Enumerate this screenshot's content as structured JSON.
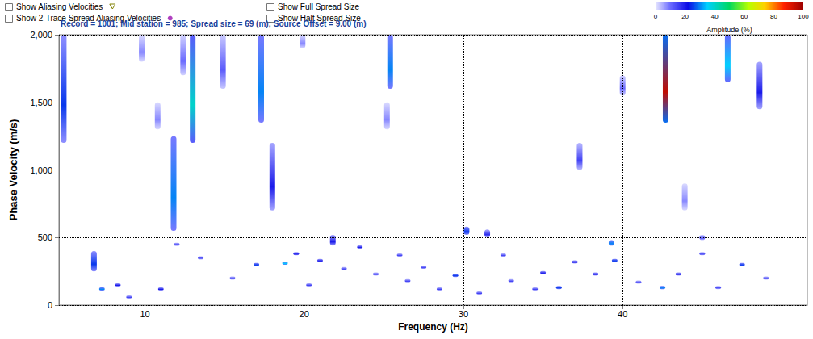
{
  "chart_data": {
    "type": "heatmap",
    "title": "Record = 1001; Mid station = 985; Spread size = 69 (m); Source Offset = 9.00 (m)",
    "annotations": [
      "Show Aliasing Velocities",
      "Show 2-Trace Spread Aliasing Velocities",
      "Show Full Spread Size",
      "Show Half Spread Size"
    ],
    "x_label": "Frequency (Hz)",
    "y_label": "Phase Velocity (m/s)",
    "xlim": [
      4.6,
      51.6
    ],
    "xticks": [
      10,
      20,
      30,
      40
    ],
    "ylim": [
      0,
      2000
    ],
    "yticks": [
      0,
      500,
      {
        "value": 1000,
        "label": "1,000"
      },
      {
        "value": 1500,
        "label": "1,500"
      },
      {
        "value": 2000,
        "label": "2,000"
      }
    ],
    "grid": true,
    "colorbar": {
      "label": "Amplitude (%)",
      "range": [
        0,
        100
      ],
      "ticks": [
        0,
        20,
        40,
        60,
        80,
        100
      ]
    },
    "features": [
      {
        "x": 4.9,
        "y": [
          1200,
          2000
        ],
        "amplitude": 25
      },
      {
        "x": 6.8,
        "y": [
          250,
          400
        ],
        "amplitude": 25
      },
      {
        "x": 9.8,
        "y": [
          1800,
          2000
        ],
        "amplitude": 8
      },
      {
        "x": 10.8,
        "y": [
          1300,
          1500
        ],
        "amplitude": 8
      },
      {
        "x": 11.8,
        "y": [
          550,
          1250
        ],
        "amplitude": 30
      },
      {
        "x": 12.4,
        "y": [
          1700,
          2000
        ],
        "amplitude": 10
      },
      {
        "x": 13.0,
        "y": [
          1200,
          2000
        ],
        "amplitude": 40
      },
      {
        "x": 14.9,
        "y": [
          1600,
          2000
        ],
        "amplitude": 12
      },
      {
        "x": 17.3,
        "y": [
          1350,
          2000
        ],
        "amplitude": 30
      },
      {
        "x": 18.0,
        "y": [
          700,
          1200
        ],
        "amplitude": 20
      },
      {
        "x": 19.9,
        "y": [
          1900,
          2000
        ],
        "amplitude": 8
      },
      {
        "x": 21.8,
        "y": [
          440,
          520
        ],
        "amplitude": 20
      },
      {
        "x": 25.2,
        "y": [
          1300,
          1500
        ],
        "amplitude": 8
      },
      {
        "x": 25.4,
        "y": [
          1600,
          2000
        ],
        "amplitude": 30
      },
      {
        "x": 30.2,
        "y": [
          520,
          580
        ],
        "amplitude": 25
      },
      {
        "x": 31.5,
        "y": [
          500,
          560
        ],
        "amplitude": 18
      },
      {
        "x": 37.3,
        "y": [
          1000,
          1200
        ],
        "amplitude": 15
      },
      {
        "x": 39.3,
        "y": [
          440,
          480
        ],
        "amplitude": 30
      },
      {
        "x": 40.0,
        "y": [
          1550,
          1700
        ],
        "amplitude": 10
      },
      {
        "x": 42.7,
        "y": [
          1350,
          2000
        ],
        "amplitude": 95
      },
      {
        "x": 43.9,
        "y": [
          700,
          900
        ],
        "amplitude": 8
      },
      {
        "x": 45.0,
        "y": [
          480,
          520
        ],
        "amplitude": 12
      },
      {
        "x": 46.6,
        "y": [
          1650,
          2000
        ],
        "amplitude": 35
      },
      {
        "x": 48.6,
        "y": [
          1450,
          1800
        ],
        "amplitude": 20
      },
      {
        "x": 7.3,
        "y": [
          110,
          130
        ],
        "amplitude": 30
      },
      {
        "x": 8.3,
        "y": [
          140,
          160
        ],
        "amplitude": 20
      },
      {
        "x": 9.0,
        "y": [
          50,
          70
        ],
        "amplitude": 15
      },
      {
        "x": 11.0,
        "y": [
          110,
          130
        ],
        "amplitude": 20
      },
      {
        "x": 12.0,
        "y": [
          440,
          460
        ],
        "amplitude": 15
      },
      {
        "x": 13.5,
        "y": [
          340,
          360
        ],
        "amplitude": 15
      },
      {
        "x": 15.5,
        "y": [
          190,
          210
        ],
        "amplitude": 15
      },
      {
        "x": 17.0,
        "y": [
          290,
          310
        ],
        "amplitude": 25
      },
      {
        "x": 18.8,
        "y": [
          300,
          320
        ],
        "amplitude": 35
      },
      {
        "x": 19.5,
        "y": [
          370,
          390
        ],
        "amplitude": 20
      },
      {
        "x": 20.3,
        "y": [
          140,
          160
        ],
        "amplitude": 15
      },
      {
        "x": 21.0,
        "y": [
          320,
          340
        ],
        "amplitude": 20
      },
      {
        "x": 22.5,
        "y": [
          260,
          280
        ],
        "amplitude": 15
      },
      {
        "x": 23.5,
        "y": [
          420,
          440
        ],
        "amplitude": 20
      },
      {
        "x": 24.5,
        "y": [
          220,
          240
        ],
        "amplitude": 15
      },
      {
        "x": 26.0,
        "y": [
          360,
          380
        ],
        "amplitude": 15
      },
      {
        "x": 26.5,
        "y": [
          170,
          190
        ],
        "amplitude": 15
      },
      {
        "x": 27.5,
        "y": [
          270,
          290
        ],
        "amplitude": 15
      },
      {
        "x": 28.5,
        "y": [
          110,
          130
        ],
        "amplitude": 15
      },
      {
        "x": 29.5,
        "y": [
          210,
          230
        ],
        "amplitude": 25
      },
      {
        "x": 31.0,
        "y": [
          80,
          100
        ],
        "amplitude": 15
      },
      {
        "x": 32.5,
        "y": [
          360,
          380
        ],
        "amplitude": 15
      },
      {
        "x": 33.0,
        "y": [
          170,
          190
        ],
        "amplitude": 15
      },
      {
        "x": 34.5,
        "y": [
          110,
          130
        ],
        "amplitude": 15
      },
      {
        "x": 35.0,
        "y": [
          230,
          250
        ],
        "amplitude": 20
      },
      {
        "x": 36.0,
        "y": [
          120,
          140
        ],
        "amplitude": 25
      },
      {
        "x": 37.0,
        "y": [
          310,
          330
        ],
        "amplitude": 20
      },
      {
        "x": 38.3,
        "y": [
          220,
          240
        ],
        "amplitude": 20
      },
      {
        "x": 39.5,
        "y": [
          320,
          340
        ],
        "amplitude": 25
      },
      {
        "x": 41.0,
        "y": [
          160,
          180
        ],
        "amplitude": 15
      },
      {
        "x": 42.5,
        "y": [
          120,
          140
        ],
        "amplitude": 30
      },
      {
        "x": 43.5,
        "y": [
          220,
          240
        ],
        "amplitude": 20
      },
      {
        "x": 45.0,
        "y": [
          370,
          390
        ],
        "amplitude": 15
      },
      {
        "x": 46.0,
        "y": [
          120,
          140
        ],
        "amplitude": 15
      },
      {
        "x": 47.5,
        "y": [
          290,
          310
        ],
        "amplitude": 25
      },
      {
        "x": 49.0,
        "y": [
          190,
          210
        ],
        "amplitude": 15
      }
    ]
  }
}
